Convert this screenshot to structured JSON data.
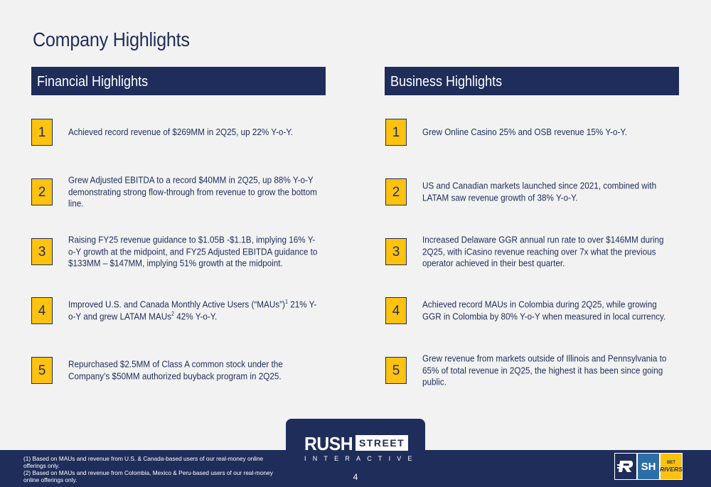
{
  "page": {
    "title": "Company Highlights",
    "page_number": "4"
  },
  "financial": {
    "header": "Financial Highlights",
    "items": [
      {
        "num": "1",
        "text": "Achieved record revenue of $269MM in 2Q25, up 22% Y-o-Y."
      },
      {
        "num": "2",
        "text": "Grew Adjusted EBITDA to a record $40MM in 2Q25, up 88% Y-o-Y demonstrating strong flow-through from revenue to grow the bottom line."
      },
      {
        "num": "3",
        "text": "Raising FY25 revenue guidance to $1.05B -$1.1B, implying 16% Y-o-Y growth at the midpoint, and FY25 Adjusted EBITDA guidance to $133MM – $147MM, implying 51% growth at the midpoint."
      },
      {
        "num": "4",
        "text_a": "Improved U.S. and Canada Monthly Active Users (“MAUs”)",
        "sup_a": "1",
        "text_b": " 21% Y-o-Y and grew LATAM MAUs",
        "sup_b": "2",
        "text_c": " 42% Y-o-Y."
      },
      {
        "num": "5",
        "text": "Repurchased $2.5MM of Class A common stock under the Company’s $50MM authorized buyback program in 2Q25."
      }
    ]
  },
  "business": {
    "header": "Business Highlights",
    "items": [
      {
        "num": "1",
        "text": "Grew Online Casino 25% and OSB revenue 15% Y-o-Y."
      },
      {
        "num": "2",
        "text": "US and Canadian markets launched since 2021, combined with LATAM saw revenue growth of 38% Y-o-Y."
      },
      {
        "num": "3",
        "text": "Increased Delaware GGR annual run rate to over $146MM during 2Q25, with iCasino revenue reaching over 7x what the previous operator achieved in their best quarter."
      },
      {
        "num": "4",
        "text": "Achieved record MAUs in Colombia during 2Q25, while growing GGR in Colombia by 80% Y-o-Y when measured in local currency."
      },
      {
        "num": "5",
        "text": "Grew revenue from markets outside of Illinois and Pennsylvania to 65% of total revenue in 2Q25, the highest it has been since going public."
      }
    ]
  },
  "footer": {
    "footnote_1": "(1) Based on MAUs and revenue from U.S. & Canada-based users of our real-money online offerings only.",
    "footnote_2": "(2) Based on MAUs and revenue from Colombia, Mexico & Peru-based users of our real-money online offerings only.",
    "logo_word_1": "RUSH",
    "logo_word_2": "STREET",
    "logo_word_3": "INTERACTIVE",
    "brand_sh": "SH",
    "brand_br_top": "BET",
    "brand_br_bottom": "RIVERS"
  },
  "colors": {
    "navy": "#1f2d5a",
    "gold": "#ffc20e",
    "background": "#f2f2f2",
    "sh_blue": "#2d6ea8"
  },
  "icons": [
    "rsi-r-logo-icon",
    "sportshub-logo-icon",
    "betrivers-logo-icon"
  ]
}
